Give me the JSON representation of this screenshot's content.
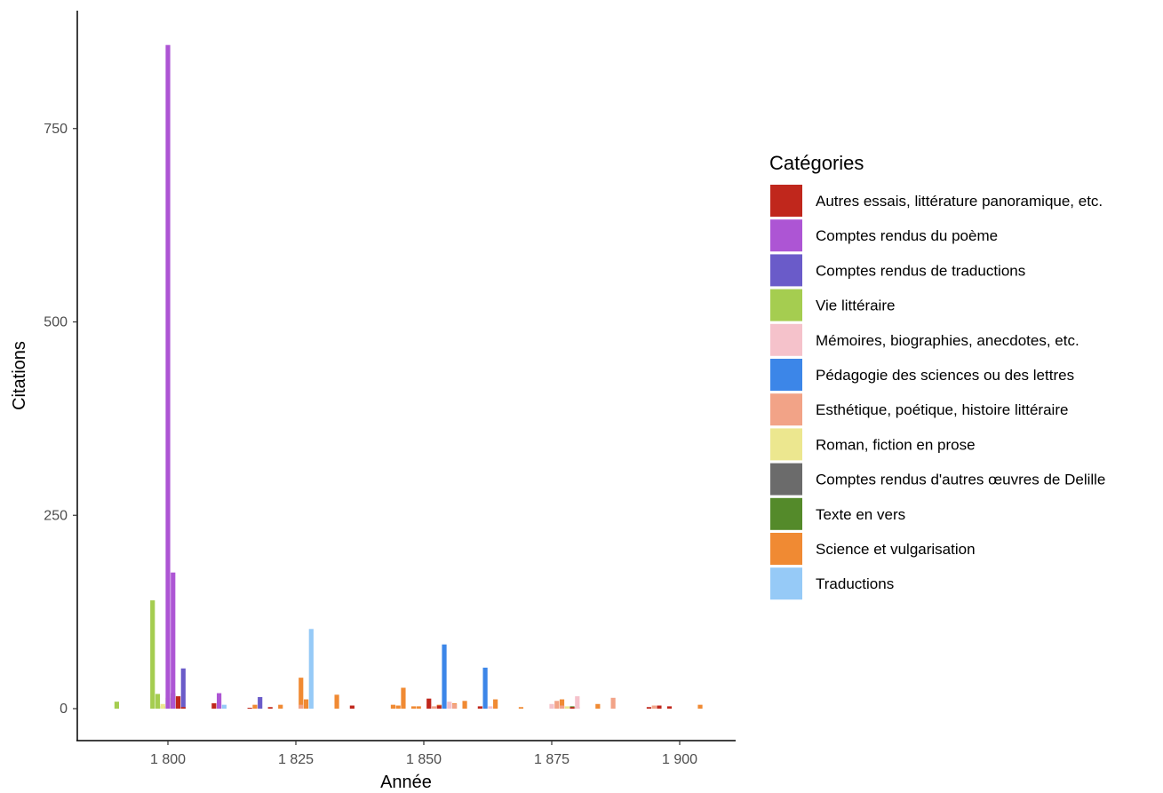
{
  "chart_data": {
    "type": "bar",
    "xlabel": "Année",
    "ylabel": "Citations",
    "xlim": [
      1785,
      1911
    ],
    "ylim": [
      -40,
      900
    ],
    "x_ticks": [
      {
        "value": 1800,
        "label": "1 800"
      },
      {
        "value": 1825,
        "label": "1 825"
      },
      {
        "value": 1850,
        "label": "1 850"
      },
      {
        "value": 1875,
        "label": "1 875"
      },
      {
        "value": 1900,
        "label": "1 900"
      }
    ],
    "y_ticks": [
      {
        "value": 0,
        "label": "0"
      },
      {
        "value": 250,
        "label": "250"
      },
      {
        "value": 500,
        "label": "500"
      },
      {
        "value": 750,
        "label": "750"
      }
    ],
    "grid": false,
    "legend": {
      "title": "Catégories",
      "position": "right"
    },
    "series": [
      {
        "name": "Autres essais, littérature panoramique, etc.",
        "color": "#c0271c",
        "points": [
          [
            1802,
            16
          ],
          [
            1803,
            2
          ],
          [
            1809,
            7
          ],
          [
            1816,
            1
          ],
          [
            1820,
            2
          ],
          [
            1836,
            4
          ],
          [
            1851,
            13
          ],
          [
            1853,
            4
          ],
          [
            1861,
            3
          ],
          [
            1879,
            2
          ],
          [
            1894,
            2
          ],
          [
            1896,
            4
          ],
          [
            1898,
            3
          ]
        ]
      },
      {
        "name": "Comptes rendus du poème",
        "color": "#ad55d4",
        "points": [
          [
            1800,
            858
          ],
          [
            1801,
            176
          ],
          [
            1810,
            20
          ]
        ]
      },
      {
        "name": "Comptes rendus de traductions",
        "color": "#6a5bc9",
        "points": [
          [
            1803,
            52
          ],
          [
            1818,
            15
          ]
        ]
      },
      {
        "name": "Vie littéraire",
        "color": "#a5cd50",
        "points": [
          [
            1790,
            9
          ],
          [
            1797,
            140
          ],
          [
            1798,
            19
          ],
          [
            1800,
            14
          ]
        ]
      },
      {
        "name": "Mémoires, biographies, anecdotes, etc.",
        "color": "#f5c2cb",
        "points": [
          [
            1851,
            6
          ],
          [
            1855,
            9
          ],
          [
            1863,
            3
          ],
          [
            1875,
            6
          ],
          [
            1880,
            16
          ],
          [
            1896,
            3
          ]
        ]
      },
      {
        "name": "Pédagogie des sciences ou des lettres",
        "color": "#3c86e8",
        "points": [
          [
            1854,
            83
          ],
          [
            1862,
            53
          ]
        ]
      },
      {
        "name": "Esthétique, poétique, histoire littéraire",
        "color": "#f2a387",
        "points": [
          [
            1826,
            5
          ],
          [
            1852,
            3
          ],
          [
            1856,
            6
          ],
          [
            1876,
            10
          ],
          [
            1877,
            4
          ],
          [
            1887,
            14
          ],
          [
            1895,
            4
          ]
        ]
      },
      {
        "name": "Roman, fiction en prose",
        "color": "#ece78f",
        "points": [
          [
            1799,
            6
          ],
          [
            1878,
            3
          ]
        ]
      },
      {
        "name": "Comptes rendus d'autres œuvres de Delille",
        "color": "#6b6b6b",
        "points": [
          [
            1801,
            20
          ],
          [
            1880,
            2
          ]
        ]
      },
      {
        "name": "Texte en vers",
        "color": "#548a2a",
        "points": [
          [
            1799,
            3
          ],
          [
            1879,
            3
          ]
        ]
      },
      {
        "name": "Science et vulgarisation",
        "color": "#f08a33",
        "points": [
          [
            1801,
            14
          ],
          [
            1817,
            5
          ],
          [
            1822,
            5
          ],
          [
            1826,
            40
          ],
          [
            1827,
            12
          ],
          [
            1833,
            18
          ],
          [
            1844,
            5
          ],
          [
            1845,
            4
          ],
          [
            1846,
            27
          ],
          [
            1848,
            3
          ],
          [
            1849,
            3
          ],
          [
            1853,
            5
          ],
          [
            1856,
            7
          ],
          [
            1858,
            10
          ],
          [
            1864,
            12
          ],
          [
            1869,
            2
          ],
          [
            1877,
            12
          ],
          [
            1884,
            6
          ],
          [
            1904,
            5
          ]
        ]
      },
      {
        "name": "Traductions",
        "color": "#96caf7",
        "points": [
          [
            1811,
            5
          ],
          [
            1828,
            103
          ]
        ]
      }
    ]
  }
}
